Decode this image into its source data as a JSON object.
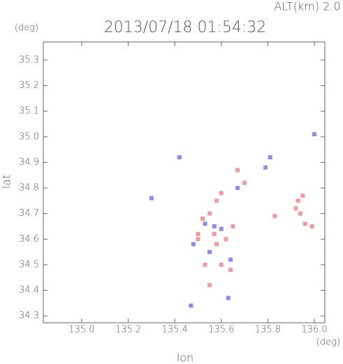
{
  "chart_data": {
    "type": "scatter",
    "title": "2013/07/18 01:54:32",
    "subtitle": "ALT(km) 2.0",
    "y_unit": "(deg)",
    "x_unit": "(deg)",
    "x_label": "lon",
    "y_label": "lat",
    "xlim": [
      134.835,
      136.045
    ],
    "ylim": [
      34.273,
      35.371
    ],
    "xticks": [
      {
        "value": 135.0,
        "label": "135.0"
      },
      135.2,
      135.4,
      135.6,
      135.8,
      {
        "value": 136.0,
        "label": "136.0"
      }
    ],
    "yticks": [
      34.3,
      34.4,
      34.5,
      34.6,
      34.7,
      34.8,
      34.9,
      {
        "value": 35.0,
        "label": "35.0"
      },
      35.1,
      35.2,
      35.3
    ],
    "series": [
      {
        "color": "#f29a9a",
        "x": [
          135.93,
          135.95,
          135.92,
          135.94,
          135.96,
          135.99,
          135.83,
          135.57,
          135.58,
          135.55,
          135.53,
          135.6,
          135.64,
          135.62,
          135.52,
          135.58,
          135.6,
          135.7,
          135.67,
          135.55,
          135.5,
          135.65,
          135.55,
          135.5
        ],
        "y": [
          34.75,
          34.77,
          34.72,
          34.7,
          34.66,
          34.65,
          34.69,
          34.62,
          34.58,
          34.55,
          34.5,
          34.5,
          34.48,
          34.6,
          34.68,
          34.75,
          34.78,
          34.82,
          34.87,
          34.42,
          34.6,
          34.65,
          34.7,
          34.62
        ]
      },
      {
        "color": "#8c8cf0",
        "x": [
          136.0,
          135.81,
          135.79,
          135.3,
          135.57,
          135.53,
          135.6,
          135.48,
          135.64,
          135.47,
          135.63,
          135.42,
          135.55,
          135.67
        ],
        "y": [
          35.01,
          34.92,
          34.88,
          34.76,
          34.65,
          34.66,
          34.64,
          34.58,
          34.52,
          34.34,
          34.37,
          34.92,
          34.55,
          34.8
        ]
      }
    ]
  }
}
